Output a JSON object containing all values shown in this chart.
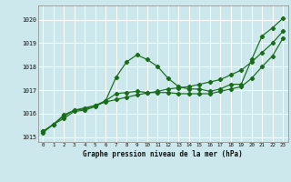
{
  "title": "Graphe pression niveau de la mer (hPa)",
  "background_color": "#cce8ec",
  "grid_color": "#ffffff",
  "line_color": "#1a6b1a",
  "xlim": [
    -0.5,
    23.5
  ],
  "ylim": [
    1014.8,
    1020.6
  ],
  "yticks": [
    1015,
    1016,
    1017,
    1018,
    1019,
    1020
  ],
  "xticks": [
    0,
    1,
    2,
    3,
    4,
    5,
    6,
    7,
    8,
    9,
    10,
    11,
    12,
    13,
    14,
    15,
    16,
    17,
    18,
    19,
    20,
    21,
    22,
    23
  ],
  "series": [
    [
      1015.2,
      1015.55,
      1015.8,
      1016.1,
      1016.15,
      1016.3,
      1016.55,
      1017.55,
      1018.2,
      1018.5,
      1018.3,
      1018.0,
      1017.5,
      1017.15,
      1017.05,
      1017.05,
      1016.95,
      1017.05,
      1017.25,
      1017.25,
      1018.3,
      1019.3,
      1019.65,
      1020.05
    ],
    [
      1015.25,
      1015.55,
      1015.9,
      1016.15,
      1016.2,
      1016.35,
      1016.55,
      1016.85,
      1016.9,
      1016.95,
      1016.9,
      1016.9,
      1016.9,
      1016.85,
      1016.85,
      1016.85,
      1016.85,
      1016.95,
      1017.05,
      1017.15,
      1017.5,
      1018.0,
      1018.45,
      1019.2
    ],
    [
      1015.25,
      1015.55,
      1015.95,
      1016.15,
      1016.25,
      1016.35,
      1016.5,
      1016.6,
      1016.7,
      1016.8,
      1016.88,
      1016.95,
      1017.05,
      1017.1,
      1017.15,
      1017.25,
      1017.35,
      1017.45,
      1017.65,
      1017.85,
      1018.2,
      1018.6,
      1019.0,
      1019.5
    ]
  ]
}
